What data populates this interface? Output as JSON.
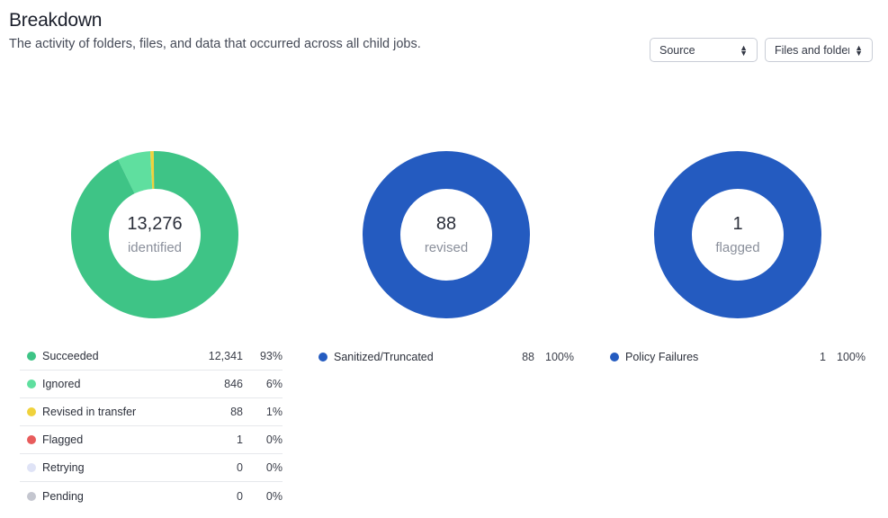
{
  "header": {
    "title": "Breakdown",
    "subtitle": "The activity of folders, files, and data that occurred across all child jobs."
  },
  "filters": {
    "source": "Source",
    "type": "Files and folder"
  },
  "colors": {
    "succeeded": "#3ec486",
    "ignored": "#5fdf9f",
    "revised": "#f0d23c",
    "flagged": "#e85c5c",
    "retrying": "#dfe3f6",
    "pending": "#c4c6cf",
    "blue": "#245bc0"
  },
  "charts": [
    {
      "center_value": "13,276",
      "center_label": "identified",
      "legend": [
        {
          "name": "Succeeded",
          "count": "12,341",
          "pct": "93%",
          "color": "#3ec486"
        },
        {
          "name": "Ignored",
          "count": "846",
          "pct": "6%",
          "color": "#5fdf9f"
        },
        {
          "name": "Revised in transfer",
          "count": "88",
          "pct": "1%",
          "color": "#f0d23c"
        },
        {
          "name": "Flagged",
          "count": "1",
          "pct": "0%",
          "color": "#e85c5c"
        },
        {
          "name": "Retrying",
          "count": "0",
          "pct": "0%",
          "color": "#dfe3f6"
        },
        {
          "name": "Pending",
          "count": "0",
          "pct": "0%",
          "color": "#c4c6cf"
        }
      ],
      "values": [
        12341,
        846,
        88,
        1,
        0,
        0
      ]
    },
    {
      "center_value": "88",
      "center_label": "revised",
      "legend": [
        {
          "name": "Sanitized/Truncated",
          "count": "88",
          "pct": "100%",
          "color": "#245bc0"
        }
      ],
      "values": [
        88
      ]
    },
    {
      "center_value": "1",
      "center_label": "flagged",
      "legend": [
        {
          "name": "Policy Failures",
          "count": "1",
          "pct": "100%",
          "color": "#245bc0"
        }
      ],
      "values": [
        1
      ]
    }
  ]
}
